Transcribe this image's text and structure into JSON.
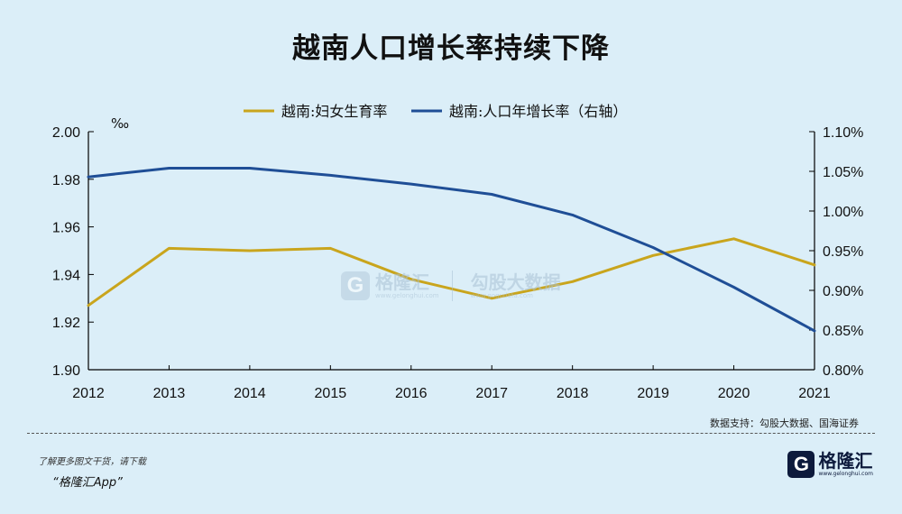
{
  "header": {
    "title": "越南人口增长率持续下降"
  },
  "chart_data": {
    "type": "line",
    "title": "越南人口增长率持续下降",
    "x": [
      "2012",
      "2013",
      "2014",
      "2015",
      "2016",
      "2017",
      "2018",
      "2019",
      "2020",
      "2021"
    ],
    "left_unit": "‰",
    "left_ylim": [
      1.9,
      2.0
    ],
    "left_ticks": [
      "1.90",
      "1.92",
      "1.94",
      "1.96",
      "1.98",
      "2.00"
    ],
    "right_ylim": [
      0.8,
      1.1
    ],
    "right_ticks": [
      "0.80%",
      "0.85%",
      "0.90%",
      "0.95%",
      "1.00%",
      "1.05%",
      "1.10%"
    ],
    "legend_position": "top-center",
    "grid": false,
    "series": [
      {
        "name": "越南:妇女生育率",
        "axis": "left",
        "color": "#c9a51d",
        "values": [
          1.927,
          1.951,
          1.95,
          1.951,
          1.938,
          1.93,
          1.937,
          1.948,
          1.955,
          1.944
        ]
      },
      {
        "name": "越南:人口年增长率（右轴）",
        "axis": "right",
        "color": "#1f4e96",
        "values": [
          1.043,
          1.054,
          1.054,
          1.045,
          1.034,
          1.021,
          0.995,
          0.954,
          0.904,
          0.849
        ]
      }
    ]
  },
  "watermark": {
    "logo_letter": "G",
    "brand": "格隆汇",
    "brand_url": "www.gelonghui.com",
    "data_brand": "勾股大数据",
    "data_url": "www.gogudata.com"
  },
  "footer": {
    "source": "数据支持：勾股大数据、国海证券",
    "promo_line1": "了解更多图文干货，请下载",
    "promo_line2": "“格隆汇App”",
    "brand_logo_letter": "G",
    "brand_name": "格隆汇",
    "brand_url": "www.gelonghui.com"
  }
}
